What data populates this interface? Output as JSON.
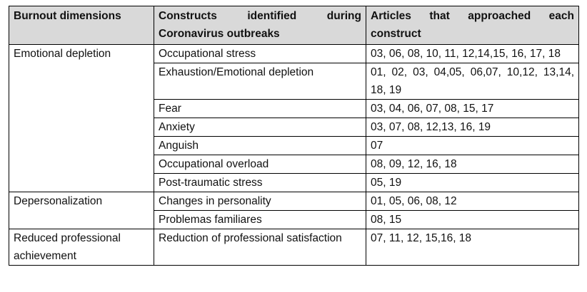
{
  "table": {
    "header": [
      "Burnout dimensions",
      "Constructs identified during Coronavirus outbreaks",
      "Articles that approached each construct"
    ],
    "groups": [
      {
        "dimension": "Emotional depletion",
        "constructs": [
          {
            "name": "Occupational stress",
            "articles": "03, 06, 08, 10, 11, 12,14,15, 16, 17, 18"
          },
          {
            "name": "Exhaustion/Emotional depletion",
            "articles": "01, 02, 03, 04,05, 06,07, 10,12, 13,14, 18, 19"
          },
          {
            "name": "Fear",
            "articles": "03, 04, 06, 07, 08, 15, 17"
          },
          {
            "name": "Anxiety",
            "articles": "03, 07, 08, 12,13, 16, 19"
          },
          {
            "name": "Anguish",
            "articles": "07"
          },
          {
            "name": "Occupational overload",
            "articles": "08, 09, 12, 16, 18"
          },
          {
            "name": "Post-traumatic stress",
            "articles": "05, 19"
          }
        ]
      },
      {
        "dimension": "Depersonalization",
        "constructs": [
          {
            "name": "Changes in personality",
            "articles": "01, 05, 06, 08, 12"
          },
          {
            "name": "Problemas familiares",
            "articles": "08, 15"
          }
        ]
      },
      {
        "dimension": "Reduced professional achievement",
        "constructs": [
          {
            "name": "Reduction of professional satisfaction",
            "articles": "07, 11, 12, 15,16, 18"
          }
        ]
      }
    ]
  }
}
